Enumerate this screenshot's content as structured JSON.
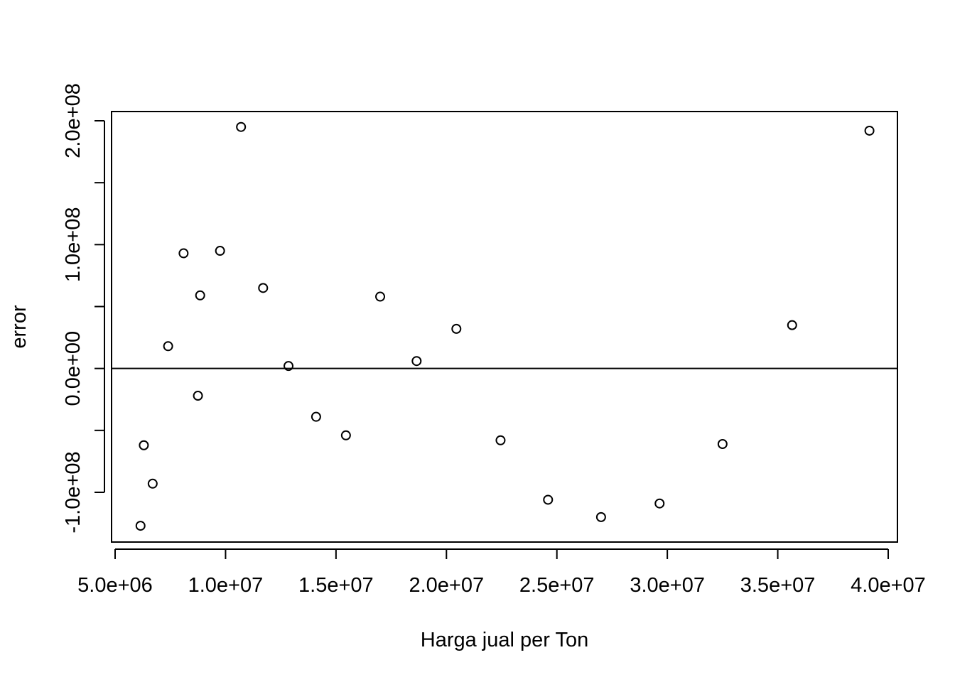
{
  "chart_data": {
    "type": "scatter",
    "title": "",
    "xlabel": "Harga jual per Ton",
    "ylabel": "error",
    "xlim": [
      5000000,
      40000000
    ],
    "ylim": [
      -140000000,
      207000000
    ],
    "x_ticks": [
      5000000,
      10000000,
      15000000,
      20000000,
      25000000,
      30000000,
      35000000,
      40000000
    ],
    "x_tick_labels": [
      "5.0e+06",
      "1.0e+07",
      "1.5e+07",
      "2.0e+07",
      "2.5e+07",
      "3.0e+07",
      "3.5e+07",
      "4.0e+07"
    ],
    "y_ticks": [
      -100000000,
      -50000000,
      0,
      50000000,
      100000000,
      150000000,
      200000000
    ],
    "y_tick_labels": [
      "-1.0e+08",
      "",
      "0.0e+00",
      "",
      "1.0e+08",
      "",
      "2.0e+08"
    ],
    "reference_line": {
      "orientation": "horizontal",
      "y": 0
    },
    "grid": false,
    "marker": "open-circle",
    "points": [
      {
        "x": 6150000,
        "y": -127000000
      },
      {
        "x": 6300000,
        "y": -62000000
      },
      {
        "x": 6700000,
        "y": -93000000
      },
      {
        "x": 7400000,
        "y": 18000000
      },
      {
        "x": 8100000,
        "y": 93000000
      },
      {
        "x": 8750000,
        "y": -22000000
      },
      {
        "x": 8850000,
        "y": 59000000
      },
      {
        "x": 9750000,
        "y": 95000000
      },
      {
        "x": 10700000,
        "y": 195000000
      },
      {
        "x": 11700000,
        "y": 65000000
      },
      {
        "x": 12850000,
        "y": 2000000
      },
      {
        "x": 14100000,
        "y": -39000000
      },
      {
        "x": 15450000,
        "y": -54000000
      },
      {
        "x": 17000000,
        "y": 58000000
      },
      {
        "x": 18650000,
        "y": 6000000
      },
      {
        "x": 20450000,
        "y": 32000000
      },
      {
        "x": 22450000,
        "y": -58000000
      },
      {
        "x": 24600000,
        "y": -106000000
      },
      {
        "x": 27000000,
        "y": -120000000
      },
      {
        "x": 29650000,
        "y": -109000000
      },
      {
        "x": 32500000,
        "y": -61000000
      },
      {
        "x": 35650000,
        "y": 35000000
      },
      {
        "x": 39150000,
        "y": 192000000
      }
    ]
  }
}
